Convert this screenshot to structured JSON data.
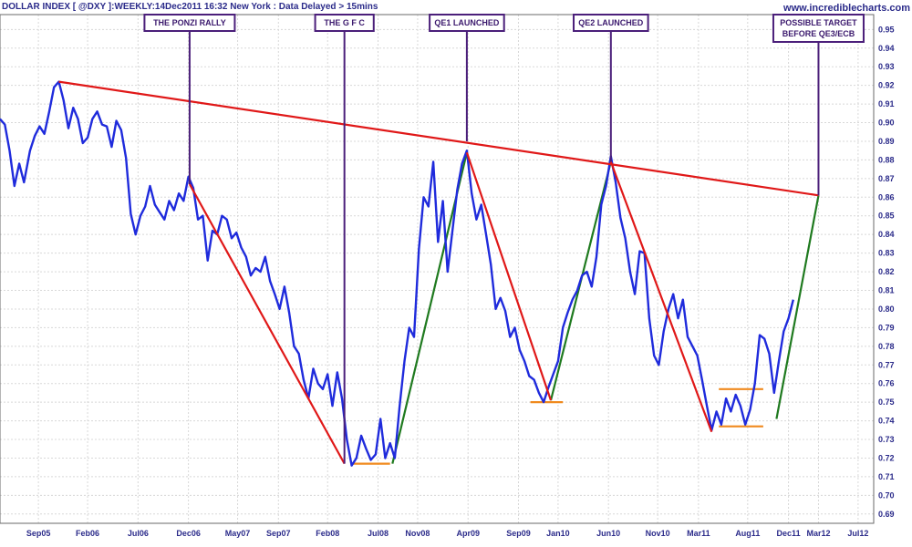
{
  "header": {
    "title": "DOLLAR INDEX [ @DXY ]:WEEKLY:14Dec2011 16:32 New York  : Data Delayed > 15mins",
    "watermark": "www.incrediblecharts.com"
  },
  "chart_data": {
    "type": "line",
    "ylim": [
      0.685,
      0.958
    ],
    "y_ticks": [
      "0.95",
      "0.94",
      "0.93",
      "0.92",
      "0.91",
      "0.90",
      "0.89",
      "0.88",
      "0.87",
      "0.86",
      "0.85",
      "0.84",
      "0.83",
      "0.82",
      "0.81",
      "0.80",
      "0.79",
      "0.78",
      "0.77",
      "0.76",
      "0.75",
      "0.74",
      "0.73",
      "0.72",
      "0.71",
      "0.70",
      "0.69"
    ],
    "x_ticks": [
      {
        "label": "Sep05",
        "t": 2005.67
      },
      {
        "label": "Feb06",
        "t": 2006.08
      },
      {
        "label": "Jul06",
        "t": 2006.5
      },
      {
        "label": "Dec06",
        "t": 2006.92
      },
      {
        "label": "May07",
        "t": 2007.33
      },
      {
        "label": "Sep07",
        "t": 2007.67
      },
      {
        "label": "Feb08",
        "t": 2008.08
      },
      {
        "label": "Jul08",
        "t": 2008.5
      },
      {
        "label": "Nov08",
        "t": 2008.83
      },
      {
        "label": "Apr09",
        "t": 2009.25
      },
      {
        "label": "Sep09",
        "t": 2009.67
      },
      {
        "label": "Jan10",
        "t": 2010.0
      },
      {
        "label": "Jun10",
        "t": 2010.42
      },
      {
        "label": "Nov10",
        "t": 2010.83
      },
      {
        "label": "Mar11",
        "t": 2011.17
      },
      {
        "label": "Aug11",
        "t": 2011.58
      },
      {
        "label": "Dec11",
        "t": 2011.92
      },
      {
        "label": "Mar12",
        "t": 2012.17
      },
      {
        "label": "Jul12",
        "t": 2012.5
      }
    ],
    "series": [
      {
        "color": "#1f2bdc",
        "points": [
          [
            2005.35,
            0.902
          ],
          [
            2005.39,
            0.899
          ],
          [
            2005.43,
            0.885
          ],
          [
            2005.47,
            0.866
          ],
          [
            2005.51,
            0.878
          ],
          [
            2005.55,
            0.868
          ],
          [
            2005.6,
            0.885
          ],
          [
            2005.64,
            0.893
          ],
          [
            2005.68,
            0.898
          ],
          [
            2005.72,
            0.894
          ],
          [
            2005.76,
            0.906
          ],
          [
            2005.8,
            0.919
          ],
          [
            2005.84,
            0.922
          ],
          [
            2005.88,
            0.912
          ],
          [
            2005.92,
            0.897
          ],
          [
            2005.96,
            0.908
          ],
          [
            2006.0,
            0.902
          ],
          [
            2006.04,
            0.889
          ],
          [
            2006.08,
            0.892
          ],
          [
            2006.12,
            0.902
          ],
          [
            2006.16,
            0.906
          ],
          [
            2006.2,
            0.899
          ],
          [
            2006.24,
            0.898
          ],
          [
            2006.28,
            0.887
          ],
          [
            2006.32,
            0.901
          ],
          [
            2006.36,
            0.896
          ],
          [
            2006.4,
            0.881
          ],
          [
            2006.44,
            0.851
          ],
          [
            2006.48,
            0.84
          ],
          [
            2006.52,
            0.85
          ],
          [
            2006.56,
            0.855
          ],
          [
            2006.6,
            0.866
          ],
          [
            2006.64,
            0.856
          ],
          [
            2006.68,
            0.852
          ],
          [
            2006.72,
            0.848
          ],
          [
            2006.76,
            0.858
          ],
          [
            2006.8,
            0.853
          ],
          [
            2006.84,
            0.862
          ],
          [
            2006.88,
            0.858
          ],
          [
            2006.92,
            0.871
          ],
          [
            2006.96,
            0.865
          ],
          [
            2007.0,
            0.848
          ],
          [
            2007.04,
            0.85
          ],
          [
            2007.08,
            0.826
          ],
          [
            2007.12,
            0.842
          ],
          [
            2007.16,
            0.84
          ],
          [
            2007.2,
            0.85
          ],
          [
            2007.24,
            0.848
          ],
          [
            2007.28,
            0.838
          ],
          [
            2007.32,
            0.841
          ],
          [
            2007.36,
            0.833
          ],
          [
            2007.4,
            0.828
          ],
          [
            2007.44,
            0.818
          ],
          [
            2007.48,
            0.822
          ],
          [
            2007.52,
            0.82
          ],
          [
            2007.56,
            0.828
          ],
          [
            2007.6,
            0.815
          ],
          [
            2007.64,
            0.808
          ],
          [
            2007.68,
            0.8
          ],
          [
            2007.72,
            0.812
          ],
          [
            2007.76,
            0.798
          ],
          [
            2007.8,
            0.78
          ],
          [
            2007.84,
            0.776
          ],
          [
            2007.88,
            0.762
          ],
          [
            2007.92,
            0.752
          ],
          [
            2007.96,
            0.768
          ],
          [
            2008.0,
            0.76
          ],
          [
            2008.04,
            0.757
          ],
          [
            2008.08,
            0.765
          ],
          [
            2008.12,
            0.748
          ],
          [
            2008.16,
            0.766
          ],
          [
            2008.2,
            0.752
          ],
          [
            2008.24,
            0.73
          ],
          [
            2008.28,
            0.716
          ],
          [
            2008.32,
            0.72
          ],
          [
            2008.36,
            0.732
          ],
          [
            2008.4,
            0.725
          ],
          [
            2008.44,
            0.719
          ],
          [
            2008.48,
            0.722
          ],
          [
            2008.52,
            0.741
          ],
          [
            2008.56,
            0.72
          ],
          [
            2008.6,
            0.728
          ],
          [
            2008.64,
            0.72
          ],
          [
            2008.68,
            0.748
          ],
          [
            2008.72,
            0.772
          ],
          [
            2008.76,
            0.79
          ],
          [
            2008.8,
            0.785
          ],
          [
            2008.84,
            0.832
          ],
          [
            2008.88,
            0.86
          ],
          [
            2008.92,
            0.855
          ],
          [
            2008.96,
            0.879
          ],
          [
            2009.0,
            0.836
          ],
          [
            2009.04,
            0.858
          ],
          [
            2009.08,
            0.82
          ],
          [
            2009.12,
            0.842
          ],
          [
            2009.16,
            0.864
          ],
          [
            2009.2,
            0.878
          ],
          [
            2009.24,
            0.885
          ],
          [
            2009.28,
            0.862
          ],
          [
            2009.32,
            0.848
          ],
          [
            2009.36,
            0.856
          ],
          [
            2009.4,
            0.84
          ],
          [
            2009.44,
            0.824
          ],
          [
            2009.48,
            0.8
          ],
          [
            2009.52,
            0.806
          ],
          [
            2009.56,
            0.799
          ],
          [
            2009.6,
            0.785
          ],
          [
            2009.64,
            0.79
          ],
          [
            2009.68,
            0.778
          ],
          [
            2009.72,
            0.772
          ],
          [
            2009.76,
            0.764
          ],
          [
            2009.8,
            0.762
          ],
          [
            2009.84,
            0.755
          ],
          [
            2009.88,
            0.75
          ],
          [
            2009.92,
            0.758
          ],
          [
            2009.96,
            0.765
          ],
          [
            2010.0,
            0.772
          ],
          [
            2010.04,
            0.79
          ],
          [
            2010.08,
            0.798
          ],
          [
            2010.12,
            0.805
          ],
          [
            2010.16,
            0.81
          ],
          [
            2010.2,
            0.818
          ],
          [
            2010.24,
            0.82
          ],
          [
            2010.28,
            0.812
          ],
          [
            2010.32,
            0.828
          ],
          [
            2010.36,
            0.856
          ],
          [
            2010.4,
            0.866
          ],
          [
            2010.44,
            0.882
          ],
          [
            2010.48,
            0.868
          ],
          [
            2010.52,
            0.849
          ],
          [
            2010.56,
            0.838
          ],
          [
            2010.6,
            0.82
          ],
          [
            2010.64,
            0.808
          ],
          [
            2010.68,
            0.831
          ],
          [
            2010.72,
            0.83
          ],
          [
            2010.76,
            0.795
          ],
          [
            2010.8,
            0.775
          ],
          [
            2010.84,
            0.77
          ],
          [
            2010.88,
            0.788
          ],
          [
            2010.92,
            0.8
          ],
          [
            2010.96,
            0.808
          ],
          [
            2011.0,
            0.795
          ],
          [
            2011.04,
            0.805
          ],
          [
            2011.08,
            0.785
          ],
          [
            2011.12,
            0.78
          ],
          [
            2011.16,
            0.775
          ],
          [
            2011.2,
            0.762
          ],
          [
            2011.24,
            0.748
          ],
          [
            2011.28,
            0.735
          ],
          [
            2011.32,
            0.745
          ],
          [
            2011.36,
            0.738
          ],
          [
            2011.4,
            0.752
          ],
          [
            2011.44,
            0.745
          ],
          [
            2011.48,
            0.754
          ],
          [
            2011.52,
            0.748
          ],
          [
            2011.56,
            0.738
          ],
          [
            2011.6,
            0.746
          ],
          [
            2011.64,
            0.76
          ],
          [
            2011.68,
            0.786
          ],
          [
            2011.72,
            0.784
          ],
          [
            2011.76,
            0.776
          ],
          [
            2011.8,
            0.755
          ],
          [
            2011.84,
            0.772
          ],
          [
            2011.88,
            0.788
          ],
          [
            2011.92,
            0.795
          ],
          [
            2011.96,
            0.805
          ]
        ]
      }
    ],
    "trendlines": [
      {
        "color": "#e01818",
        "points": [
          [
            2005.84,
            0.922
          ],
          [
            2012.17,
            0.861
          ]
        ]
      },
      {
        "color": "#e01818",
        "points": [
          [
            2006.93,
            0.867
          ],
          [
            2008.22,
            0.717
          ]
        ]
      },
      {
        "color": "#e01818",
        "points": [
          [
            2009.24,
            0.884
          ],
          [
            2009.94,
            0.751
          ]
        ]
      },
      {
        "color": "#e01818",
        "points": [
          [
            2010.44,
            0.879
          ],
          [
            2011.28,
            0.734
          ]
        ]
      },
      {
        "color": "#1f7a1f",
        "points": [
          [
            2008.62,
            0.717
          ],
          [
            2009.24,
            0.884
          ]
        ]
      },
      {
        "color": "#1f7a1f",
        "points": [
          [
            2009.94,
            0.751
          ],
          [
            2010.44,
            0.879
          ]
        ]
      },
      {
        "color": "#1f7a1f",
        "points": [
          [
            2011.82,
            0.741
          ],
          [
            2012.17,
            0.861
          ]
        ]
      }
    ],
    "support_lines": [
      {
        "color": "#f08a1e",
        "points": [
          [
            2008.28,
            0.717
          ],
          [
            2008.6,
            0.717
          ]
        ]
      },
      {
        "color": "#f08a1e",
        "points": [
          [
            2009.77,
            0.75
          ],
          [
            2010.04,
            0.75
          ]
        ]
      },
      {
        "color": "#f08a1e",
        "points": [
          [
            2011.34,
            0.737
          ],
          [
            2011.71,
            0.737
          ]
        ]
      },
      {
        "color": "#f08a1e",
        "points": [
          [
            2011.34,
            0.757
          ],
          [
            2011.71,
            0.757
          ]
        ]
      }
    ],
    "annotations": [
      {
        "text": [
          "THE PONZI RALLY"
        ],
        "t": 2006.93,
        "y_target": 0.867
      },
      {
        "text": [
          "THE G F C"
        ],
        "t": 2008.22,
        "y_target": 0.717
      },
      {
        "text": [
          "QE1 LAUNCHED"
        ],
        "t": 2009.24,
        "y_target": 0.89
      },
      {
        "text": [
          "QE2 LAUNCHED"
        ],
        "t": 2010.44,
        "y_target": 0.879
      },
      {
        "text": [
          "POSSIBLE TARGET",
          "BEFORE QE3/ECB"
        ],
        "t": 2012.17,
        "y_target": 0.861
      }
    ]
  }
}
